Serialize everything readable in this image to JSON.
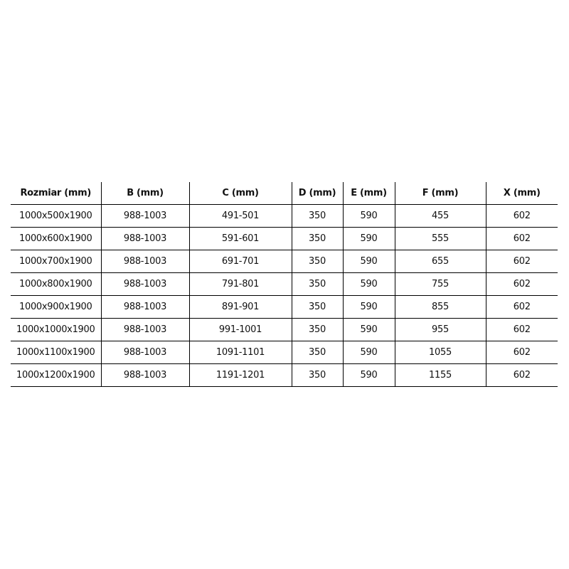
{
  "table": {
    "headers": [
      "Rozmiar (mm)",
      "B (mm)",
      "C (mm)",
      "D (mm)",
      "E (mm)",
      "F (mm)",
      "X (mm)"
    ],
    "rows": [
      [
        "1000x500x1900",
        "988-1003",
        "491-501",
        "350",
        "590",
        "455",
        "602"
      ],
      [
        "1000x600x1900",
        "988-1003",
        "591-601",
        "350",
        "590",
        "555",
        "602"
      ],
      [
        "1000x700x1900",
        "988-1003",
        "691-701",
        "350",
        "590",
        "655",
        "602"
      ],
      [
        "1000x800x1900",
        "988-1003",
        "791-801",
        "350",
        "590",
        "755",
        "602"
      ],
      [
        "1000x900x1900",
        "988-1003",
        "891-901",
        "350",
        "590",
        "855",
        "602"
      ],
      [
        "1000x1000x1900",
        "988-1003",
        "991-1001",
        "350",
        "590",
        "955",
        "602"
      ],
      [
        "1000x1100x1900",
        "988-1003",
        "1091-1101",
        "350",
        "590",
        "1055",
        "602"
      ],
      [
        "1000x1200x1900",
        "988-1003",
        "1191-1201",
        "350",
        "590",
        "1155",
        "602"
      ]
    ]
  }
}
